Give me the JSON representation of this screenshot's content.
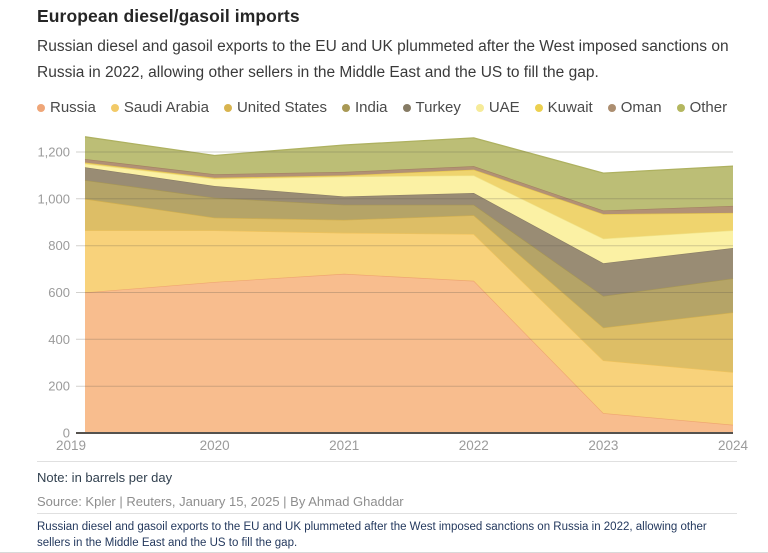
{
  "header": {
    "title": "European diesel/gasoil imports",
    "subtitle": "Russian diesel and gasoil exports to the EU and UK plummeted after the West imposed sanctions on Russia in 2022, allowing other sellers in the Middle East and the US to fill the gap."
  },
  "chart_data": {
    "type": "area",
    "stacked": true,
    "title": "European diesel/gasoil imports",
    "xlabel": "",
    "ylabel": "",
    "categories": [
      "2019",
      "2020",
      "2021",
      "2022",
      "2023",
      "2024"
    ],
    "series": [
      {
        "name": "Russia",
        "fill": "#f8bd8e",
        "line": "#efa671",
        "dot": "#efa678",
        "values": [
          600,
          645,
          680,
          650,
          85,
          35
        ]
      },
      {
        "name": "Saudi Arabia",
        "fill": "#f8d27b",
        "line": "#f0c35c",
        "dot": "#f2ca68",
        "values": [
          265,
          220,
          175,
          200,
          225,
          225
        ]
      },
      {
        "name": "United States",
        "fill": "#ddbe66",
        "line": "#d1af4f",
        "dot": "#d8b44f",
        "values": [
          135,
          55,
          55,
          80,
          140,
          255
        ]
      },
      {
        "name": "India",
        "fill": "#b5a467",
        "line": "#a79655",
        "dot": "#a99955",
        "values": [
          80,
          85,
          65,
          45,
          135,
          145
        ]
      },
      {
        "name": "Turkey",
        "fill": "#998c74",
        "line": "#8a7d66",
        "dot": "#867b64",
        "values": [
          55,
          50,
          35,
          50,
          140,
          130
        ]
      },
      {
        "name": "UAE",
        "fill": "#fbf1a4",
        "line": "#f1e489",
        "dot": "#f6eb99",
        "values": [
          15,
          30,
          85,
          75,
          105,
          75
        ]
      },
      {
        "name": "Kuwait",
        "fill": "#efd46e",
        "line": "#e4c44d",
        "dot": "#ecd04f",
        "values": [
          5,
          5,
          5,
          25,
          105,
          75
        ]
      },
      {
        "name": "Oman",
        "fill": "#b29175",
        "line": "#a48263",
        "dot": "#ac8e70",
        "values": [
          15,
          15,
          15,
          15,
          15,
          30
        ]
      },
      {
        "name": "Other",
        "fill": "#bcbe76",
        "line": "#aeb160",
        "dot": "#b4b75f",
        "values": [
          95,
          80,
          115,
          120,
          160,
          170
        ]
      }
    ],
    "ylim": [
      0,
      1300
    ],
    "y_ticks": [
      0,
      200,
      400,
      600,
      800,
      1000,
      1200
    ],
    "y_tick_labels": [
      "0",
      "200",
      "400",
      "600",
      "800",
      "1,000",
      "1,200"
    ],
    "grid": true,
    "legend_position": "top",
    "grid_color": "#dcdcdc",
    "axis_color": "#55524e",
    "tick_label_color": "#9b9b9b"
  },
  "footer": {
    "note": "Note: in barrels per day",
    "source": "Source: Kpler | Reuters, January 15, 2025 | By Ahmad Ghaddar",
    "description": "Russian diesel and gasoil exports to the EU and UK plummeted after the West imposed sanctions on Russia in 2022, allowing other sellers in the Middle East and the US to fill the gap."
  }
}
